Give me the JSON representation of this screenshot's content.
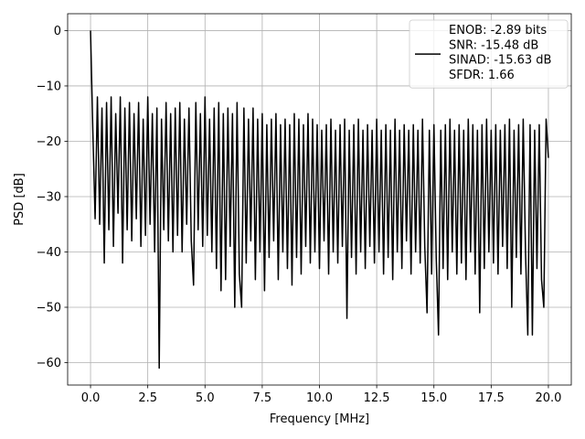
{
  "chart_data": {
    "type": "line",
    "xlabel": "Frequency [MHz]",
    "ylabel": "PSD [dB]",
    "x": [
      0,
      0.1,
      0.2,
      0.3,
      0.4,
      0.5,
      0.6,
      0.7,
      0.8,
      0.9,
      1,
      1.1,
      1.2,
      1.3,
      1.4,
      1.5,
      1.6,
      1.7,
      1.8,
      1.9,
      2,
      2.1,
      2.2,
      2.3,
      2.4,
      2.5,
      2.6,
      2.7,
      2.8,
      2.9,
      3,
      3.1,
      3.2,
      3.3,
      3.4,
      3.5,
      3.6,
      3.7,
      3.8,
      3.9,
      4,
      4.1,
      4.2,
      4.3,
      4.4,
      4.5,
      4.6,
      4.7,
      4.8,
      4.9,
      5,
      5.1,
      5.2,
      5.3,
      5.4,
      5.5,
      5.6,
      5.7,
      5.8,
      5.9,
      6,
      6.1,
      6.2,
      6.3,
      6.4,
      6.5,
      6.6,
      6.7,
      6.8,
      6.9,
      7,
      7.1,
      7.2,
      7.3,
      7.4,
      7.5,
      7.6,
      7.7,
      7.8,
      7.9,
      8,
      8.1,
      8.2,
      8.3,
      8.4,
      8.5,
      8.6,
      8.7,
      8.8,
      8.9,
      9,
      9.1,
      9.2,
      9.3,
      9.4,
      9.5,
      9.6,
      9.7,
      9.8,
      9.9,
      10,
      10.1,
      10.2,
      10.3,
      10.4,
      10.5,
      10.6,
      10.7,
      10.8,
      10.9,
      11,
      11.1,
      11.2,
      11.3,
      11.4,
      11.5,
      11.6,
      11.7,
      11.8,
      11.9,
      12,
      12.1,
      12.2,
      12.3,
      12.4,
      12.5,
      12.6,
      12.7,
      12.8,
      12.9,
      13,
      13.1,
      13.2,
      13.3,
      13.4,
      13.5,
      13.6,
      13.7,
      13.8,
      13.9,
      14,
      14.1,
      14.2,
      14.3,
      14.4,
      14.5,
      14.6,
      14.7,
      14.8,
      14.9,
      15,
      15.1,
      15.2,
      15.3,
      15.4,
      15.5,
      15.6,
      15.7,
      15.8,
      15.9,
      16,
      16.1,
      16.2,
      16.3,
      16.4,
      16.5,
      16.6,
      16.7,
      16.8,
      16.9,
      17,
      17.1,
      17.2,
      17.3,
      17.4,
      17.5,
      17.6,
      17.7,
      17.8,
      17.9,
      18,
      18.1,
      18.2,
      18.3,
      18.4,
      18.5,
      18.6,
      18.7,
      18.8,
      18.9,
      19,
      19.1,
      19.2,
      19.3,
      19.4,
      19.5,
      19.6,
      19.7,
      19.8,
      19.9,
      20
    ],
    "series": [
      {
        "name": "ENOB: -2.89 bits\nSNR: -15.48 dB\nSINAD: -15.63 dB\nSFDR: 1.66",
        "color": "#000000",
        "values": [
          0,
          -18,
          -34,
          -12,
          -35,
          -14,
          -42,
          -13,
          -36,
          -12,
          -39,
          -15,
          -33,
          -12,
          -42,
          -14,
          -36,
          -13,
          -38,
          -15,
          -34,
          -13,
          -39,
          -16,
          -37,
          -12,
          -35,
          -15,
          -40,
          -14,
          -61,
          -16,
          -36,
          -13,
          -38,
          -15,
          -40,
          -14,
          -37,
          -13,
          -40,
          -16,
          -35,
          -14,
          -38,
          -46,
          -13,
          -36,
          -15,
          -39,
          -12,
          -37,
          -16,
          -40,
          -14,
          -43,
          -13,
          -47,
          -15,
          -45,
          -14,
          -39,
          -15,
          -50,
          -13,
          -44,
          -50,
          -14,
          -42,
          -16,
          -38,
          -14,
          -45,
          -16,
          -40,
          -15,
          -47,
          -17,
          -41,
          -16,
          -38,
          -15,
          -45,
          -17,
          -40,
          -16,
          -43,
          -17,
          -46,
          -15,
          -41,
          -16,
          -44,
          -17,
          -39,
          -15,
          -42,
          -16,
          -40,
          -17,
          -43,
          -18,
          -38,
          -17,
          -44,
          -16,
          -40,
          -18,
          -42,
          -17,
          -39,
          -16,
          -52,
          -18,
          -41,
          -17,
          -44,
          -16,
          -40,
          -18,
          -43,
          -17,
          -39,
          -18,
          -42,
          -16,
          -40,
          -18,
          -44,
          -17,
          -41,
          -18,
          -45,
          -16,
          -40,
          -18,
          -43,
          -17,
          -38,
          -18,
          -44,
          -17,
          -40,
          -18,
          -42,
          -16,
          -39,
          -51,
          -18,
          -44,
          -17,
          -41,
          -55,
          -18,
          -43,
          -17,
          -45,
          -16,
          -40,
          -18,
          -44,
          -17,
          -42,
          -18,
          -45,
          -16,
          -40,
          -17,
          -44,
          -18,
          -51,
          -17,
          -43,
          -16,
          -40,
          -18,
          -42,
          -17,
          -44,
          -18,
          -39,
          -17,
          -43,
          -16,
          -50,
          -18,
          -41,
          -17,
          -44,
          -16,
          -40,
          -55,
          -17,
          -55,
          -18,
          -43,
          -17,
          -45,
          -50,
          -16,
          -23
        ]
      }
    ],
    "xlim": [
      -1,
      21
    ],
    "xticks": [
      {
        "value": 0,
        "label": "0.0"
      },
      2.5,
      {
        "value": 5,
        "label": "5.0"
      },
      7.5,
      {
        "value": 10,
        "label": "10.0"
      },
      12.5,
      {
        "value": 15,
        "label": "15.0"
      },
      17.5,
      {
        "value": 20,
        "label": "20.0"
      }
    ],
    "ylim": [
      -64.05,
      3.05
    ],
    "yticks": [
      {
        "value": -60,
        "label": "−60"
      },
      {
        "value": -50,
        "label": "−50"
      },
      {
        "value": -40,
        "label": "−40"
      },
      {
        "value": -30,
        "label": "−30"
      },
      {
        "value": -20,
        "label": "−20"
      },
      {
        "value": -10,
        "label": "−10"
      },
      0
    ],
    "grid": true,
    "legend": "upper right"
  }
}
